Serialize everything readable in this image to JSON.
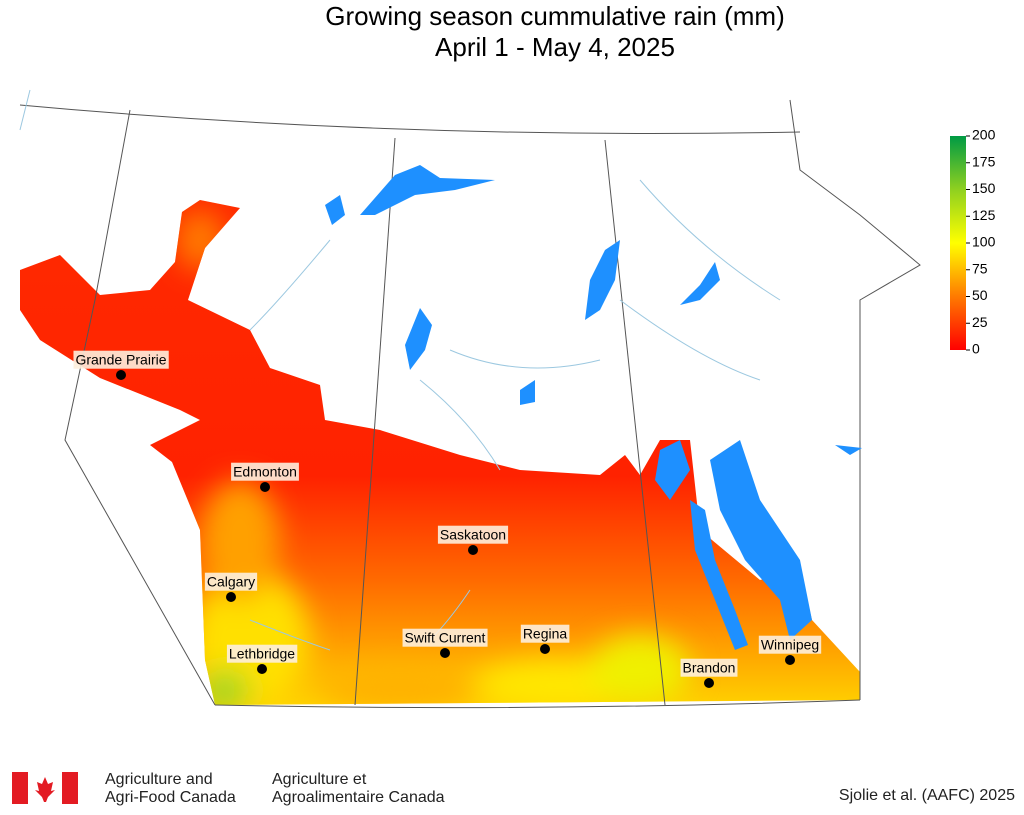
{
  "title": "Growing season cummulative rain (mm)",
  "subtitle": "April 1 - May 4, 2025",
  "colorbar": {
    "range": [
      0,
      200
    ],
    "ticks": [
      0,
      25,
      50,
      75,
      100,
      125,
      150,
      175,
      200
    ],
    "colors": [
      "#ff0000",
      "#ff7a00",
      "#ffff00",
      "#8fd020",
      "#009a44"
    ]
  },
  "cities": [
    "Grande Prairie",
    "Edmonton",
    "Saskatoon",
    "Calgary",
    "Lethbridge",
    "Swift Current",
    "Regina",
    "Brandon",
    "Winnipeg"
  ],
  "footer": {
    "english": [
      "Agriculture and",
      "Agri-Food Canada"
    ],
    "french": [
      "Agriculture et",
      "Agroalimentaire Canada"
    ],
    "credit": "Sjolie et al. (AAFC) 2025"
  }
}
